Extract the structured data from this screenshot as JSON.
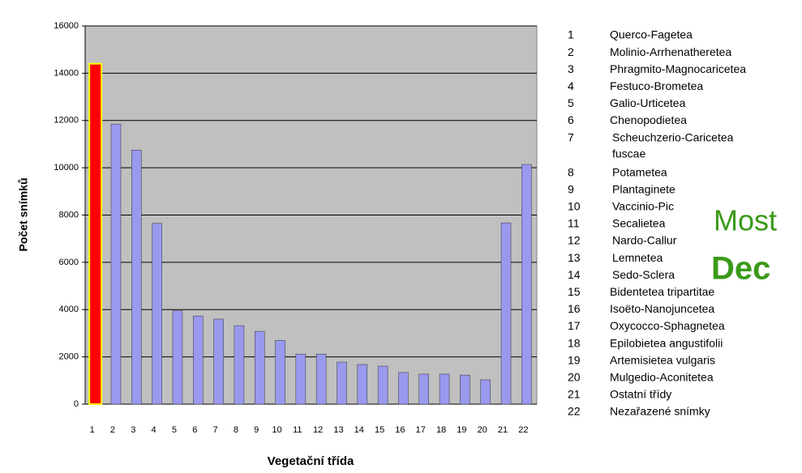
{
  "chart_data": {
    "type": "bar",
    "y_label": "Počet snímků",
    "x_label": "Vegetační třída",
    "categories": [
      "1",
      "2",
      "3",
      "4",
      "5",
      "6",
      "7",
      "8",
      "9",
      "10",
      "11",
      "12",
      "13",
      "14",
      "15",
      "16",
      "17",
      "18",
      "19",
      "20",
      "21",
      "22"
    ],
    "values": [
      14400,
      11850,
      10750,
      7650,
      3950,
      3730,
      3600,
      3320,
      3080,
      2700,
      2120,
      2120,
      1780,
      1680,
      1610,
      1340,
      1270,
      1270,
      1230,
      1030,
      7670,
      10140
    ],
    "colors": [
      "#ff0000",
      "#9999ee",
      "#9999ee",
      "#9999ee",
      "#9999ee",
      "#9999ee",
      "#9999ee",
      "#9999ee",
      "#9999ee",
      "#9999ee",
      "#9999ee",
      "#9999ee",
      "#9999ee",
      "#9999ee",
      "#9999ee",
      "#9999ee",
      "#9999ee",
      "#9999ee",
      "#9999ee",
      "#9999ee",
      "#9999ee",
      "#9999ee"
    ],
    "ylim": [
      0,
      16000
    ],
    "yticks": [
      0,
      2000,
      4000,
      6000,
      8000,
      10000,
      12000,
      14000,
      16000
    ],
    "grid": true,
    "legend_items": [
      {
        "number": "1",
        "name": [
          "Querco-Fagetea"
        ]
      },
      {
        "number": "2",
        "name": [
          "Molinio-Arrhenatheretea"
        ]
      },
      {
        "number": "3",
        "name": [
          "Phragmito-Magnocaricetea"
        ]
      },
      {
        "number": "4",
        "name": [
          "Festuco-Brometea"
        ]
      },
      {
        "number": "5",
        "name": [
          "Galio-Urticetea"
        ]
      },
      {
        "number": "6",
        "name": [
          "Chenopodietea"
        ]
      },
      {
        "number": "7",
        "name": [
          "Scheuchzerio-Caricetea",
          "fuscae"
        ]
      },
      {
        "number": "8",
        "name": [
          "Potametea"
        ]
      },
      {
        "number": "9",
        "name": [
          "Plantaginete"
        ]
      },
      {
        "number": "10",
        "name": [
          "Vaccinio-Pic"
        ]
      },
      {
        "number": "11",
        "name": [
          "Secalietea"
        ]
      },
      {
        "number": "12",
        "name": [
          "Nardo-Callur"
        ]
      },
      {
        "number": "13",
        "name": [
          "Lemnetea"
        ]
      },
      {
        "number": "14",
        "name": [
          "Sedo-Sclera"
        ]
      },
      {
        "number": "15",
        "name": [
          "Bidentetea tripartitae"
        ]
      },
      {
        "number": "16",
        "name": [
          "Isoëto-Nanojuncetea"
        ]
      },
      {
        "number": "17",
        "name": [
          "Oxycocco-Sphagnetea"
        ]
      },
      {
        "number": "18",
        "name": [
          "Epilobietea angustifolii"
        ]
      },
      {
        "number": "19",
        "name": [
          "Artemisietea vulgaris"
        ]
      },
      {
        "number": "20",
        "name": [
          "Mulgedio-Aconitetea"
        ]
      },
      {
        "number": "21",
        "name": [
          "Ostatní třídy"
        ]
      },
      {
        "number": "22",
        "name": [
          "Nezařazené snímky"
        ]
      }
    ],
    "overlay": [
      "Most",
      "Dec"
    ]
  }
}
